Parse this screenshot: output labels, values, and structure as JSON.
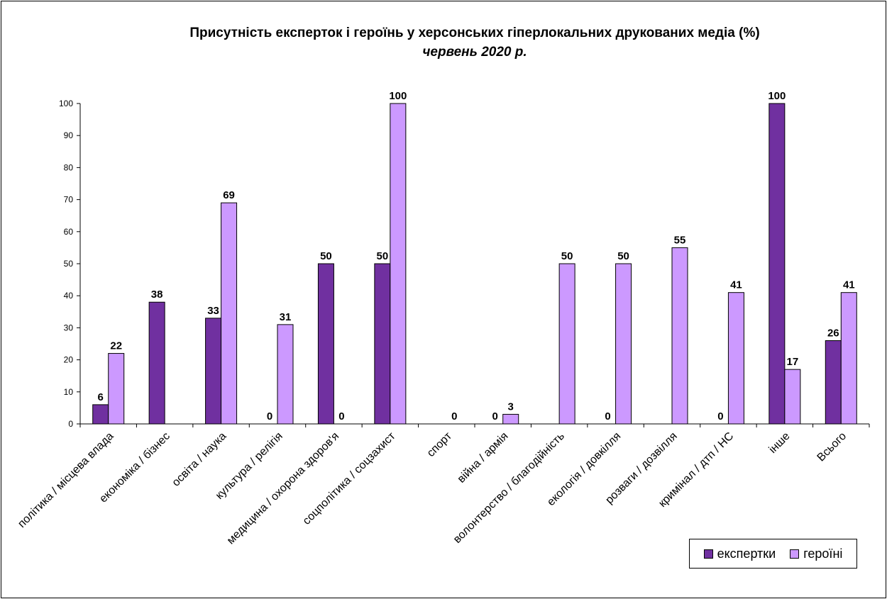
{
  "chart_data": {
    "type": "bar",
    "title": "Присутність експерток і героїнь у херсонських гіперлокальних друкованих медіа (%)",
    "subtitle": "червень 2020 р.",
    "categories": [
      "політика / місцева влада",
      "економіка / бізнес",
      "освіта / наука",
      "культура / релігія",
      "медицина / охорона здоров'я",
      "соцполітика / соцзахист",
      "спорт",
      "війна / армія",
      "волонтерство / благодійність",
      "екологія / довкілля",
      "розваги / дозвілля",
      "кримінал / дтп / НС",
      "інше",
      "Всього"
    ],
    "series": [
      {
        "name": "експертки",
        "color": "#7030A0",
        "values": [
          6,
          38,
          33,
          0,
          50,
          50,
          null,
          0,
          null,
          0,
          null,
          0,
          100,
          26
        ]
      },
      {
        "name": "героїні",
        "color": "#CC99FF",
        "values": [
          22,
          null,
          69,
          31,
          0,
          100,
          0,
          3,
          50,
          50,
          55,
          41,
          17,
          41
        ]
      }
    ],
    "ylim": [
      0,
      100
    ],
    "yticks": [
      0,
      10,
      20,
      30,
      40,
      50,
      60,
      70,
      80,
      90,
      100
    ],
    "grid": false,
    "legend_position": "bottom-right"
  }
}
